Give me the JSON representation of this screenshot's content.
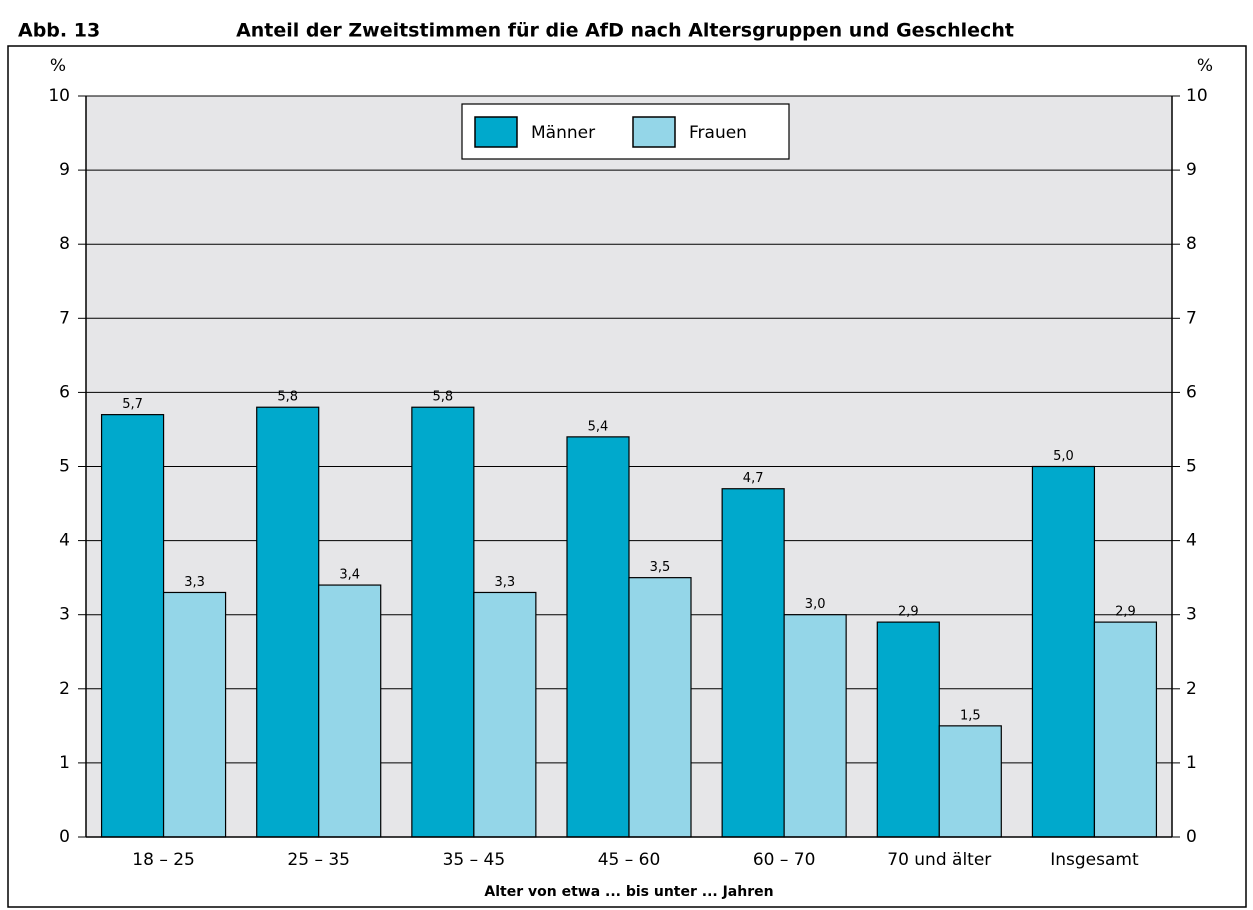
{
  "chart_data": {
    "type": "bar",
    "figure_label": "Abb. 13",
    "title": "Anteil der Zweitstimmen für die AfD nach Altersgruppen und Geschlecht",
    "y_unit": "%",
    "x_label": "Alter von etwa ... bis unter ... Jahren",
    "categories": [
      "18 – 25",
      "25 – 35",
      "35 – 45",
      "45 – 60",
      "60 – 70",
      "70 und älter",
      "Insgesamt"
    ],
    "series": [
      {
        "name": "Männer",
        "color": "#00a9cc",
        "values": [
          5.7,
          5.8,
          5.8,
          5.4,
          4.7,
          2.9,
          5.0
        ],
        "value_labels": [
          "5,7",
          "5,8",
          "5,8",
          "5,4",
          "4,7",
          "2,9",
          "5,0"
        ]
      },
      {
        "name": "Frauen",
        "color": "#94d6e8",
        "values": [
          3.3,
          3.4,
          3.3,
          3.5,
          3.0,
          1.5,
          2.9
        ],
        "value_labels": [
          "3,3",
          "3,4",
          "3,3",
          "3,5",
          "3,0",
          "1,5",
          "2,9"
        ]
      }
    ],
    "ylim": [
      0,
      10
    ],
    "yticks": [
      0,
      1,
      2,
      3,
      4,
      5,
      6,
      7,
      8,
      9,
      10
    ],
    "grid": true,
    "legend": "top"
  }
}
